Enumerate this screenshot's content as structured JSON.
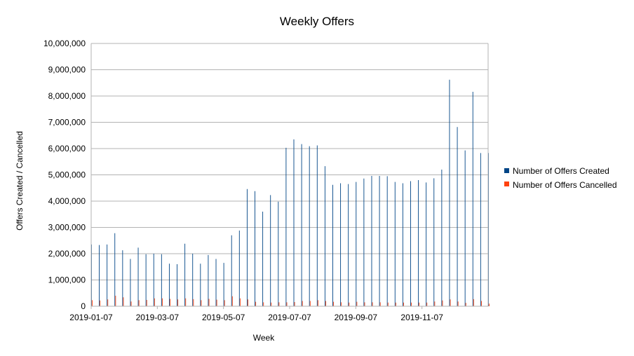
{
  "chart_data": {
    "type": "bar",
    "title": "Weekly Offers",
    "xlabel": "Week",
    "ylabel": "Offers Created / Cancelled",
    "ylim": [
      0,
      10000000
    ],
    "yticks": [
      "0",
      "1,000,000",
      "2,000,000",
      "3,000,000",
      "4,000,000",
      "5,000,000",
      "6,000,000",
      "7,000,000",
      "8,000,000",
      "9,000,000",
      "10,000,000"
    ],
    "xtick_labels": [
      "2019-01-07",
      "2019-03-07",
      "2019-05-07",
      "2019-07-07",
      "2019-09-07",
      "2019-11-07"
    ],
    "grid": "horizontal",
    "legend_position": "right",
    "colors": {
      "created": "#004586",
      "cancelled": "#ff420e",
      "grid": "#b3b3b3",
      "axis": "#b3b3b3"
    },
    "series": [
      {
        "name": "Number of Offers Created",
        "values": [
          2350000,
          2330000,
          2350000,
          2780000,
          2130000,
          1800000,
          2230000,
          1980000,
          2000000,
          1980000,
          1620000,
          1600000,
          2380000,
          2000000,
          1620000,
          1950000,
          1800000,
          1650000,
          2700000,
          2880000,
          4460000,
          4380000,
          3600000,
          4230000,
          3980000,
          6030000,
          6350000,
          6170000,
          6090000,
          6120000,
          5330000,
          4620000,
          4680000,
          4650000,
          4730000,
          4860000,
          4960000,
          4960000,
          4950000,
          4730000,
          4680000,
          4760000,
          4800000,
          4710000,
          4870000,
          5200000,
          8620000,
          6820000,
          5930000,
          8160000,
          5830000,
          5830000
        ]
      },
      {
        "name": "Number of Offers Cancelled",
        "values": [
          230000,
          220000,
          260000,
          400000,
          340000,
          180000,
          230000,
          240000,
          300000,
          300000,
          280000,
          260000,
          300000,
          270000,
          230000,
          280000,
          250000,
          230000,
          380000,
          300000,
          260000,
          170000,
          150000,
          140000,
          150000,
          150000,
          160000,
          200000,
          200000,
          230000,
          200000,
          170000,
          150000,
          140000,
          170000,
          150000,
          150000,
          150000,
          140000,
          140000,
          140000,
          140000,
          140000,
          140000,
          180000,
          220000,
          260000,
          180000,
          130000,
          270000,
          200000,
          100000
        ]
      }
    ]
  }
}
